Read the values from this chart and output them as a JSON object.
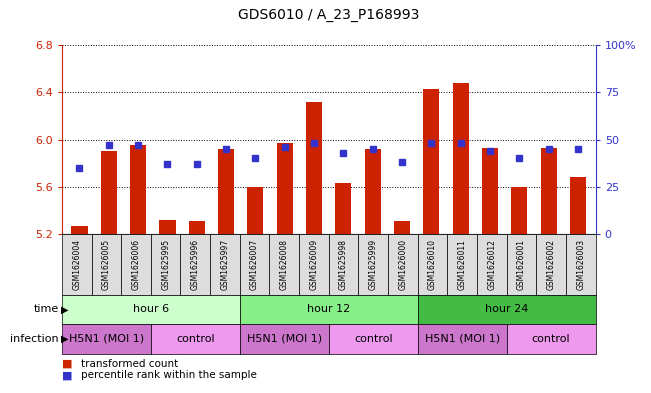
{
  "title": "GDS6010 / A_23_P168993",
  "samples": [
    "GSM1626004",
    "GSM1626005",
    "GSM1626006",
    "GSM1625995",
    "GSM1625996",
    "GSM1625997",
    "GSM1626007",
    "GSM1626008",
    "GSM1626009",
    "GSM1625998",
    "GSM1625999",
    "GSM1626000",
    "GSM1626010",
    "GSM1626011",
    "GSM1626012",
    "GSM1626001",
    "GSM1626002",
    "GSM1626003"
  ],
  "red_values": [
    5.27,
    5.9,
    5.95,
    5.32,
    5.31,
    5.92,
    5.6,
    5.97,
    6.32,
    5.63,
    5.92,
    5.31,
    6.43,
    6.48,
    5.93,
    5.6,
    5.93,
    5.68
  ],
  "blue_percentiles": [
    35,
    47,
    47,
    37,
    37,
    45,
    40,
    46,
    48,
    43,
    45,
    38,
    48,
    48,
    44,
    40,
    45,
    45
  ],
  "ymin": 5.2,
  "ymax": 6.8,
  "yticks_left": [
    5.2,
    5.6,
    6.0,
    6.4,
    6.8
  ],
  "yticks_right": [
    0,
    25,
    50,
    75,
    100
  ],
  "ytick_labels_right": [
    "0",
    "25",
    "50",
    "75",
    "100%"
  ],
  "bar_color": "#cc2200",
  "blue_color": "#3333cc",
  "time_groups": [
    {
      "label": "hour 6",
      "start": 0,
      "end": 6,
      "color": "#ccffcc"
    },
    {
      "label": "hour 12",
      "start": 6,
      "end": 12,
      "color": "#88ee88"
    },
    {
      "label": "hour 24",
      "start": 12,
      "end": 18,
      "color": "#44bb44"
    }
  ],
  "infection_groups": [
    {
      "label": "H5N1 (MOI 1)",
      "start": 0,
      "end": 3,
      "color": "#cc77cc"
    },
    {
      "label": "control",
      "start": 3,
      "end": 6,
      "color": "#ee99ee"
    },
    {
      "label": "H5N1 (MOI 1)",
      "start": 6,
      "end": 9,
      "color": "#cc77cc"
    },
    {
      "label": "control",
      "start": 9,
      "end": 12,
      "color": "#ee99ee"
    },
    {
      "label": "H5N1 (MOI 1)",
      "start": 12,
      "end": 15,
      "color": "#cc77cc"
    },
    {
      "label": "control",
      "start": 15,
      "end": 18,
      "color": "#ee99ee"
    }
  ],
  "legend_items": [
    {
      "label": "transformed count",
      "color": "#cc2200"
    },
    {
      "label": "percentile rank within the sample",
      "color": "#3333cc"
    }
  ],
  "bg_color": "#ffffff",
  "axis_color_left": "#cc2200",
  "axis_color_right": "#3333cc"
}
